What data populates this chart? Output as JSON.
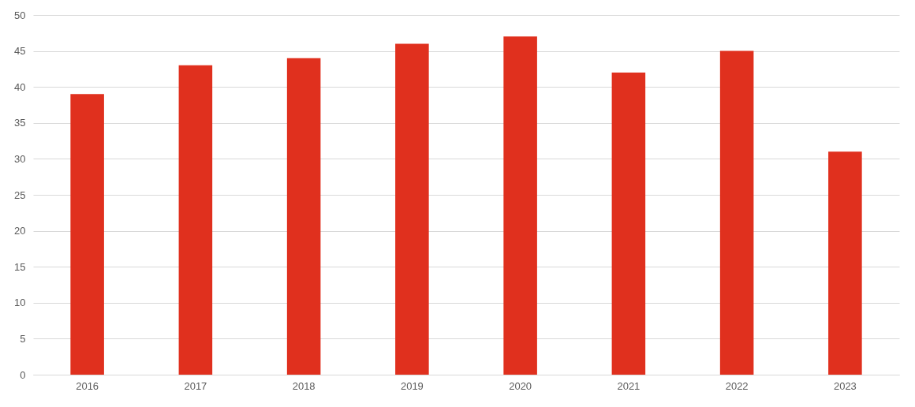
{
  "chart_data": {
    "type": "bar",
    "categories": [
      "2016",
      "2017",
      "2018",
      "2019",
      "2020",
      "2021",
      "2022",
      "2023"
    ],
    "values": [
      39,
      43,
      44,
      46,
      47,
      42,
      45,
      31
    ],
    "color": "#e0301e",
    "ylim": [
      0,
      50
    ],
    "yticks": [
      0,
      5,
      10,
      15,
      20,
      25,
      30,
      35,
      40,
      45,
      50
    ],
    "grid": "y"
  }
}
